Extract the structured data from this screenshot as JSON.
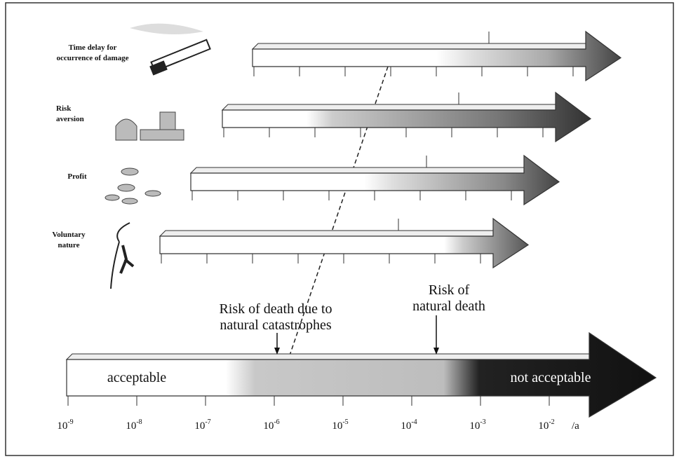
{
  "rows": [
    {
      "label": [
        "Time delay for",
        "occurrence of damage"
      ]
    },
    {
      "label": [
        "Risk",
        "aversion"
      ]
    },
    {
      "label": [
        "Profit"
      ]
    },
    {
      "label": [
        "Voluntary",
        "nature"
      ]
    }
  ],
  "main_arrow": {
    "left_label": "acceptable",
    "right_label": "not acceptable"
  },
  "annotations": [
    {
      "lines": [
        "Risk of death due to",
        "natural catastrophes"
      ]
    },
    {
      "lines": [
        "Risk of",
        "natural death"
      ]
    }
  ],
  "axis": {
    "ticks": [
      {
        "base": "10",
        "exponent": "-9"
      },
      {
        "base": "10",
        "exponent": "-8"
      },
      {
        "base": "10",
        "exponent": "-7"
      },
      {
        "base": "10",
        "exponent": "-6"
      },
      {
        "base": "10",
        "exponent": "-5"
      },
      {
        "base": "10",
        "exponent": "-4"
      },
      {
        "base": "10",
        "exponent": "-3"
      },
      {
        "base": "10",
        "exponent": "-2"
      }
    ],
    "unit": "/a"
  }
}
